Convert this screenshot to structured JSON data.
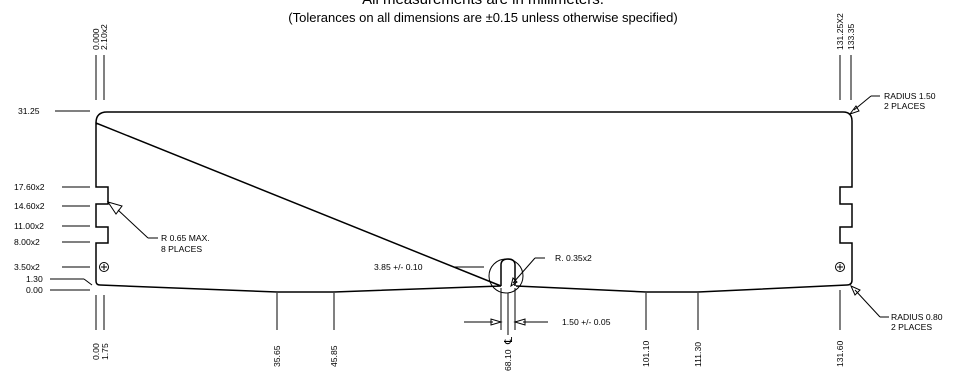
{
  "header": {
    "line1": "All measurements are in millimeters.",
    "line2": "(Tolerances on all dimensions are ±0.15 unless otherwise specified)"
  },
  "left_dims": [
    "31.25",
    "17.60x2",
    "14.60x2",
    "11.00x2",
    "8.00x2",
    "3.50x2",
    "1.30",
    "0.00"
  ],
  "top_dims": {
    "left_a": "0.000",
    "left_b": "2.10x2",
    "right_a": "131.25X2",
    "right_b": "133.35"
  },
  "bottom_dims": [
    "0.00",
    "1.75",
    "35.65",
    "45.85",
    "68.10",
    "101.10",
    "111.30",
    "131.60"
  ],
  "notes": {
    "notch_radius": [
      "R 0.65 MAX.",
      "8 PLACES"
    ],
    "top_corner_radius": [
      "RADIUS 1.50",
      "2 PLACES"
    ],
    "bottom_corner_radius": [
      "RADIUS 0.80",
      "2 PLACES"
    ],
    "slot_radius": "R. 0.35x2",
    "slot_depth": "3.85 +/- 0.10",
    "slot_width": "1.50 +/- 0.05",
    "centerline_symbol": "℄"
  }
}
